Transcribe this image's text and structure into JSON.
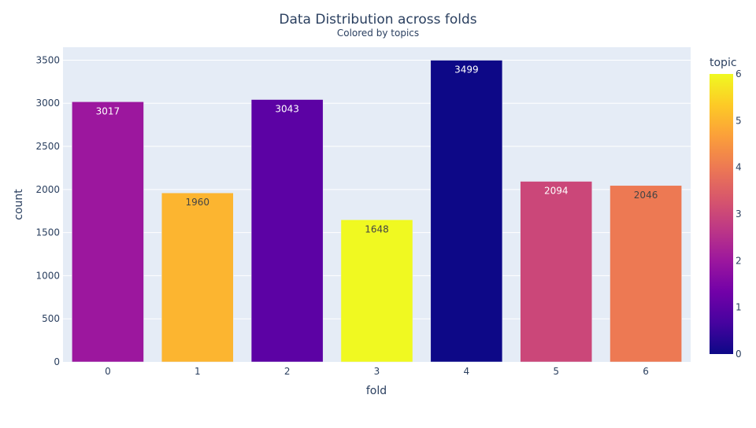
{
  "chart_data": {
    "type": "bar",
    "title": "Data Distribution across folds",
    "subtitle": "Colored by topics",
    "xlabel": "fold",
    "ylabel": "count",
    "categories": [
      "0",
      "1",
      "2",
      "3",
      "4",
      "5",
      "6"
    ],
    "values": [
      3017,
      1960,
      3043,
      1648,
      3499,
      2094,
      2046
    ],
    "topic_values": [
      2,
      5,
      1,
      6,
      0,
      3,
      4
    ],
    "ylim": [
      0,
      3650
    ],
    "yticks": [
      0,
      500,
      1000,
      1500,
      2000,
      2500,
      3000,
      3500
    ],
    "grid": true,
    "colorbar": {
      "title": "topic",
      "range": [
        0,
        6
      ],
      "ticks": [
        0,
        1,
        2,
        3,
        4,
        5,
        6
      ],
      "placement": "right"
    },
    "colors": {
      "plot_background": "#e5ecf6",
      "text": "#2a3f5f",
      "grid": "#ffffff",
      "colorscale": [
        "#0d0887",
        "#46039f",
        "#7201a8",
        "#9c179e",
        "#bd3786",
        "#d8576b",
        "#ed7953",
        "#fb9f3a",
        "#fdca26",
        "#f0f921"
      ]
    }
  }
}
